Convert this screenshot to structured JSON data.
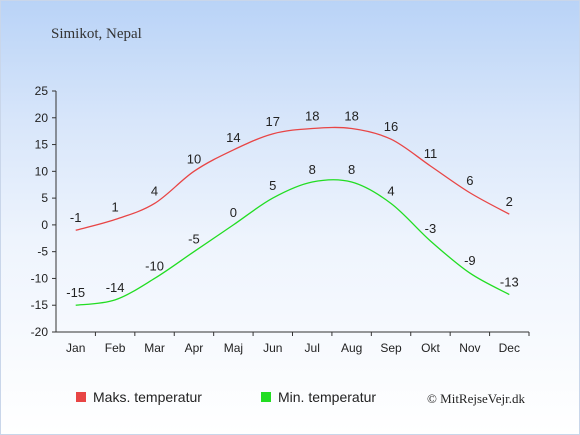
{
  "chart_data": {
    "type": "line",
    "title": "Simikot, Nepal",
    "categories": [
      "Jan",
      "Feb",
      "Mar",
      "Apr",
      "Maj",
      "Jun",
      "Jul",
      "Aug",
      "Sep",
      "Okt",
      "Nov",
      "Dec"
    ],
    "ylim": [
      -20,
      25
    ],
    "yticks": [
      25,
      20,
      15,
      10,
      5,
      0,
      -5,
      -10,
      -15,
      -20
    ],
    "grid": false,
    "legend_position": "bottom",
    "series": [
      {
        "name": "Maks. temperatur",
        "color": "#e84545",
        "values": [
          -1,
          1,
          4,
          10,
          14,
          17,
          18,
          18,
          16,
          11,
          6,
          2
        ]
      },
      {
        "name": "Min. temperatur",
        "color": "#22dd22",
        "values": [
          -15,
          -14,
          -10,
          -5,
          0,
          5,
          8,
          8,
          4,
          -3,
          -9,
          -13
        ]
      }
    ],
    "credit": "© MitRejseVejr.dk"
  }
}
